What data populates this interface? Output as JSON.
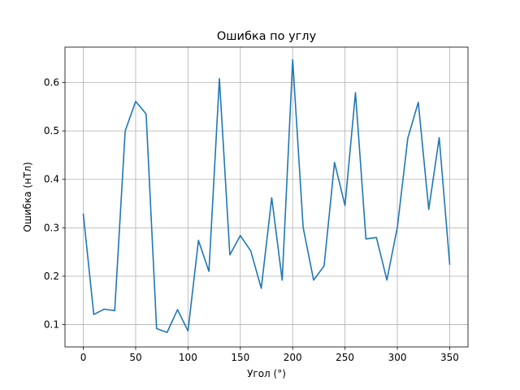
{
  "chart_data": {
    "type": "line",
    "title": "Ошибка по углу",
    "xlabel": "Угол (°)",
    "ylabel": "Ошибка (нТл)",
    "xlim": [
      -17.5,
      367.5
    ],
    "ylim": [
      0.054,
      0.673
    ],
    "xticks": [
      0,
      50,
      100,
      150,
      200,
      250,
      300,
      350
    ],
    "yticks": [
      0.1,
      0.2,
      0.3,
      0.4,
      0.5,
      0.6
    ],
    "grid": true,
    "line_color": "#1f77b4",
    "series": [
      {
        "name": "Ошибка",
        "x": [
          0,
          10,
          20,
          30,
          40,
          50,
          60,
          70,
          80,
          90,
          100,
          110,
          120,
          130,
          140,
          150,
          160,
          170,
          180,
          190,
          200,
          210,
          220,
          230,
          240,
          250,
          260,
          270,
          280,
          290,
          300,
          310,
          320,
          330,
          340,
          350
        ],
        "y": [
          0.328,
          0.121,
          0.132,
          0.129,
          0.5,
          0.561,
          0.535,
          0.092,
          0.084,
          0.131,
          0.087,
          0.274,
          0.21,
          0.608,
          0.244,
          0.284,
          0.252,
          0.175,
          0.362,
          0.192,
          0.647,
          0.301,
          0.192,
          0.221,
          0.435,
          0.346,
          0.579,
          0.277,
          0.28,
          0.192,
          0.301,
          0.485,
          0.559,
          0.338,
          0.486,
          0.225
        ]
      }
    ]
  }
}
